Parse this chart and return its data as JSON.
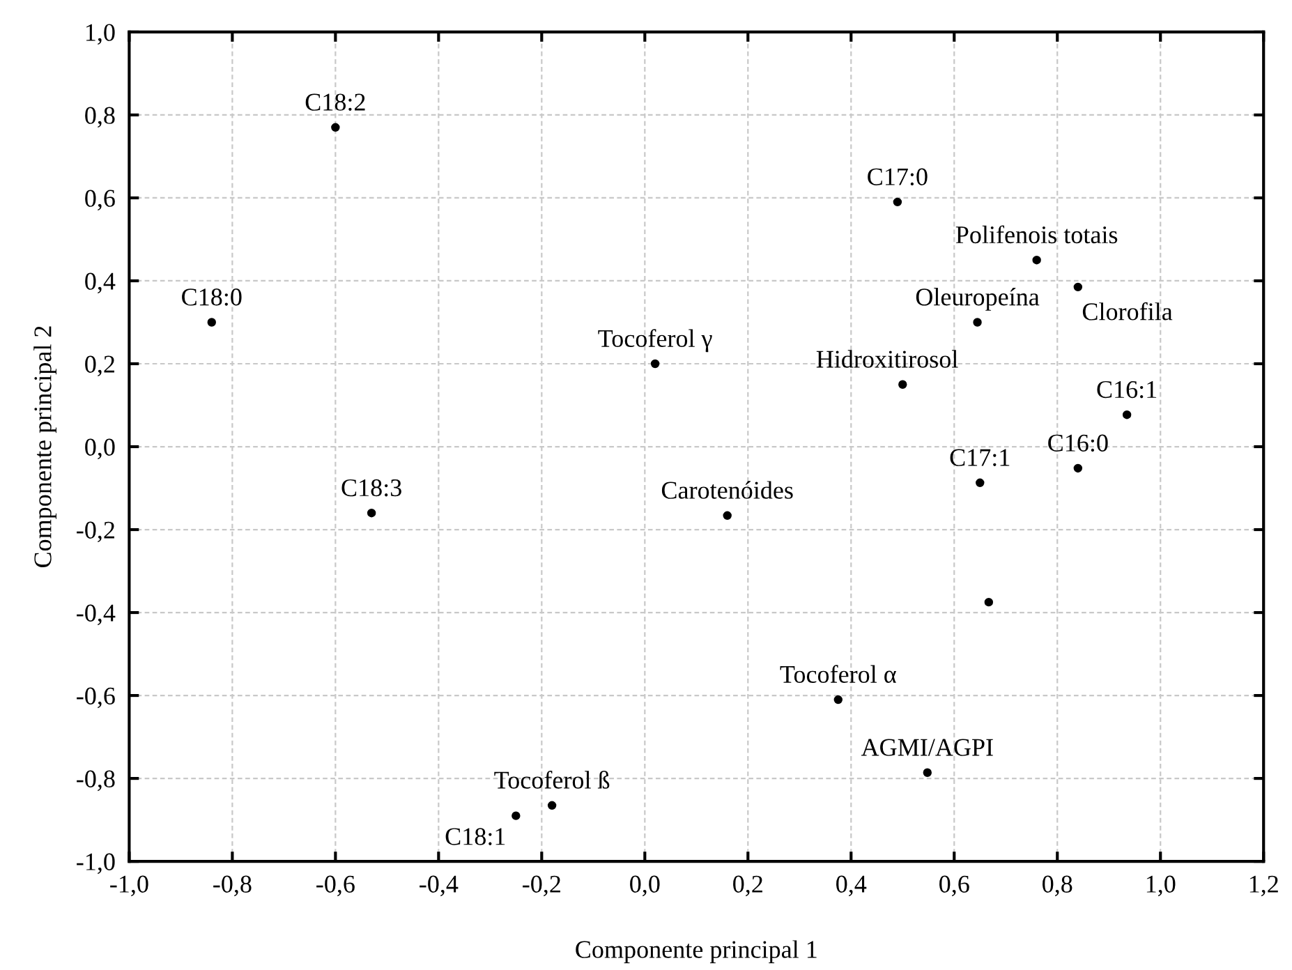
{
  "chart_data": {
    "type": "scatter",
    "xlabel": "Componente principal 1",
    "ylabel": "Componente principal 2",
    "xlim": [
      -1.0,
      1.2
    ],
    "ylim": [
      -1.0,
      1.0
    ],
    "xticks": [
      {
        "value": -1.0,
        "label": "-1,0"
      },
      {
        "value": -0.8,
        "label": "-0,8"
      },
      {
        "value": -0.6,
        "label": "-0,6"
      },
      {
        "value": -0.4,
        "label": "-0,4"
      },
      {
        "value": -0.2,
        "label": "-0,2"
      },
      {
        "value": 0.0,
        "label": "0,0"
      },
      {
        "value": 0.2,
        "label": "0,2"
      },
      {
        "value": 0.4,
        "label": "0,4"
      },
      {
        "value": 0.6,
        "label": "0,6"
      },
      {
        "value": 0.8,
        "label": "0,8"
      },
      {
        "value": 1.0,
        "label": "1,0"
      },
      {
        "value": 1.2,
        "label": "1,2"
      }
    ],
    "yticks": [
      {
        "value": -1.0,
        "label": "-1,0"
      },
      {
        "value": -0.8,
        "label": "-0,8"
      },
      {
        "value": -0.6,
        "label": "-0,6"
      },
      {
        "value": -0.4,
        "label": "-0,4"
      },
      {
        "value": -0.2,
        "label": "-0,2"
      },
      {
        "value": 0.0,
        "label": "0,0"
      },
      {
        "value": 0.2,
        "label": "0,2"
      },
      {
        "value": 0.4,
        "label": "0,4"
      },
      {
        "value": 0.6,
        "label": "0,6"
      },
      {
        "value": 0.8,
        "label": "0,8"
      },
      {
        "value": 1.0,
        "label": "1,0"
      }
    ],
    "grid": true,
    "marker": "circle",
    "series": [
      {
        "color": "#000000",
        "x": [
          -0.6,
          -0.84,
          0.02,
          0.49,
          0.76,
          0.84,
          0.645,
          0.5,
          0.935,
          -0.53,
          -0.18,
          -0.25,
          0.65,
          0.84,
          0.16,
          0.667,
          0.375,
          0.548
        ],
        "values": [
          0.77,
          0.3,
          0.2,
          0.59,
          0.45,
          0.385,
          0.3,
          0.15,
          0.077,
          -0.16,
          -0.865,
          -0.89,
          -0.087,
          -0.052,
          -0.166,
          -0.375,
          -0.61,
          -0.786
        ]
      }
    ],
    "annotations": [
      {
        "text": "C18:2",
        "x": -0.6,
        "y": 0.77
      },
      {
        "text": "C18:0",
        "x": -0.84,
        "y": 0.3
      },
      {
        "text": "Tocoferol γ",
        "x": 0.02,
        "y": 0.2
      },
      {
        "text": "C17:0",
        "x": 0.49,
        "y": 0.59
      },
      {
        "text": "Polifenois totais",
        "x": 0.76,
        "y": 0.45
      },
      {
        "text": "Clorofila",
        "x": 0.84,
        "y": 0.385
      },
      {
        "text": "Oleuropeína",
        "x": 0.645,
        "y": 0.3
      },
      {
        "text": "Hidroxitirosol",
        "x": 0.5,
        "y": 0.15
      },
      {
        "text": "C16:1",
        "x": 0.935,
        "y": 0.077
      },
      {
        "text": "C18:3",
        "x": -0.53,
        "y": -0.16
      },
      {
        "text": "Tocoferol ß",
        "x": -0.18,
        "y": -0.865
      },
      {
        "text": "C18:1",
        "x": -0.25,
        "y": -0.89
      },
      {
        "text": "C17:1",
        "x": 0.65,
        "y": -0.087
      },
      {
        "text": "C16:0",
        "x": 0.84,
        "y": -0.052
      },
      {
        "text": "Carotenóides",
        "x": 0.16,
        "y": -0.166
      },
      {
        "text": "Tocoferol α",
        "x": 0.375,
        "y": -0.61
      },
      {
        "text": "AGMI/AGPI",
        "x": 0.548,
        "y": -0.786
      }
    ]
  }
}
